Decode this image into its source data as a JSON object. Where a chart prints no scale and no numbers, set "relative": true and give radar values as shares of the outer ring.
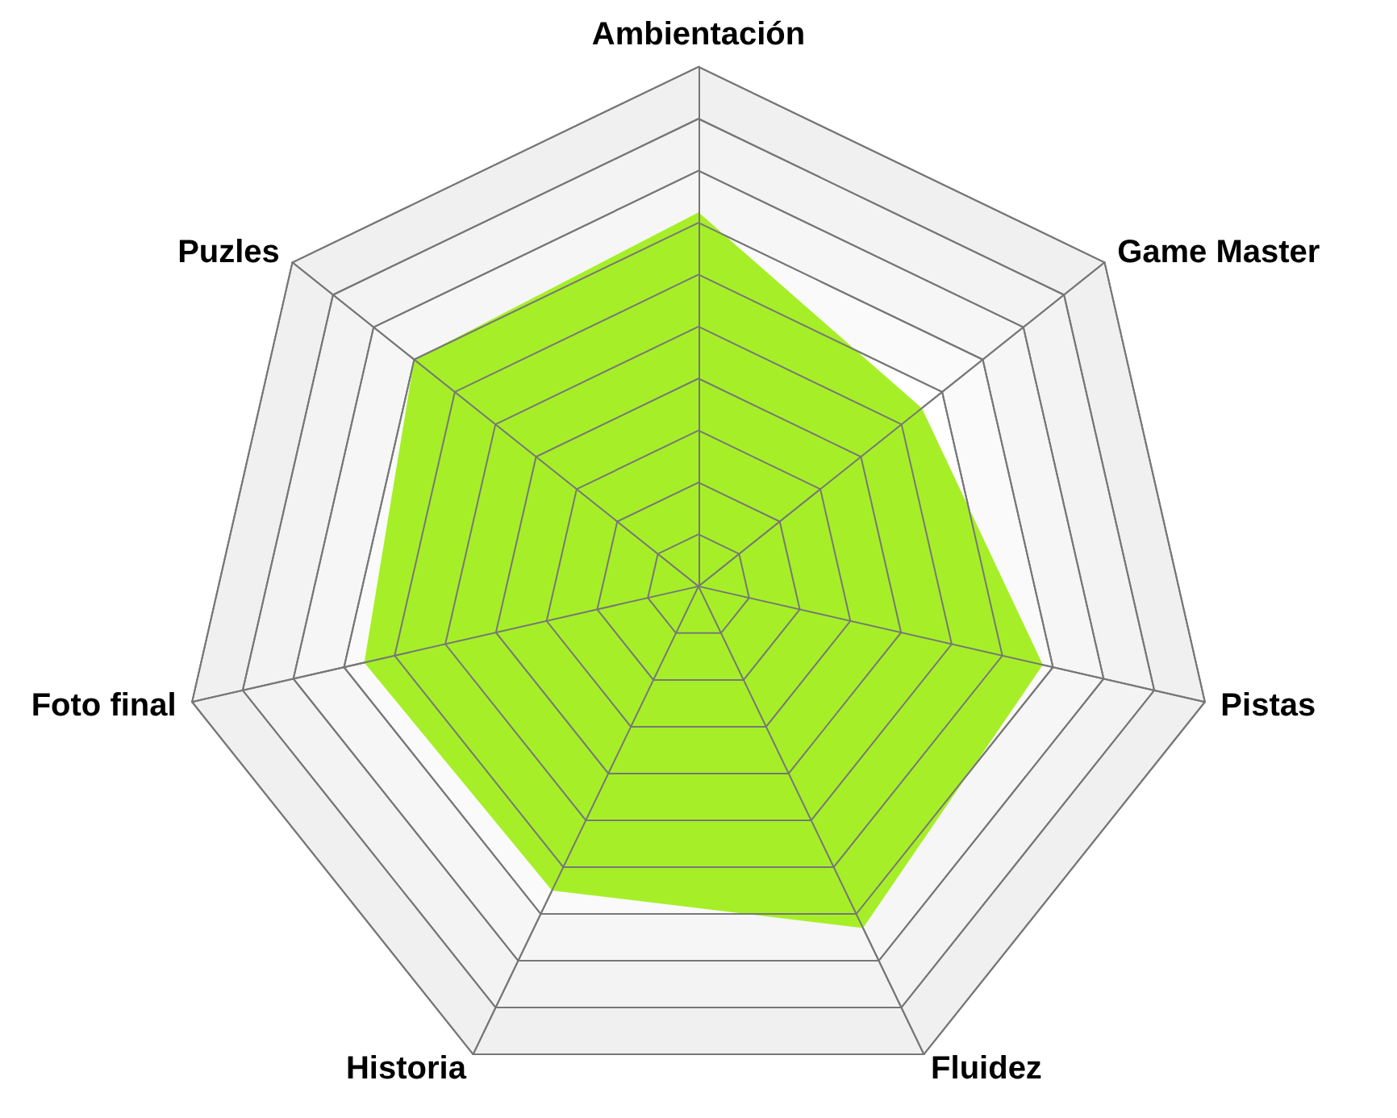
{
  "chart_data": {
    "type": "radar",
    "relative": true,
    "grid": true,
    "categories": [
      "Ambientación",
      "Game Master",
      "Pistas",
      "Fluidez",
      "Historia",
      "Foto final",
      "Puzles"
    ],
    "series": [
      {
        "color": "#a6ef28",
        "values": [
          0.72,
          0.55,
          0.68,
          0.73,
          0.65,
          0.66,
          0.7
        ]
      }
    ]
  }
}
